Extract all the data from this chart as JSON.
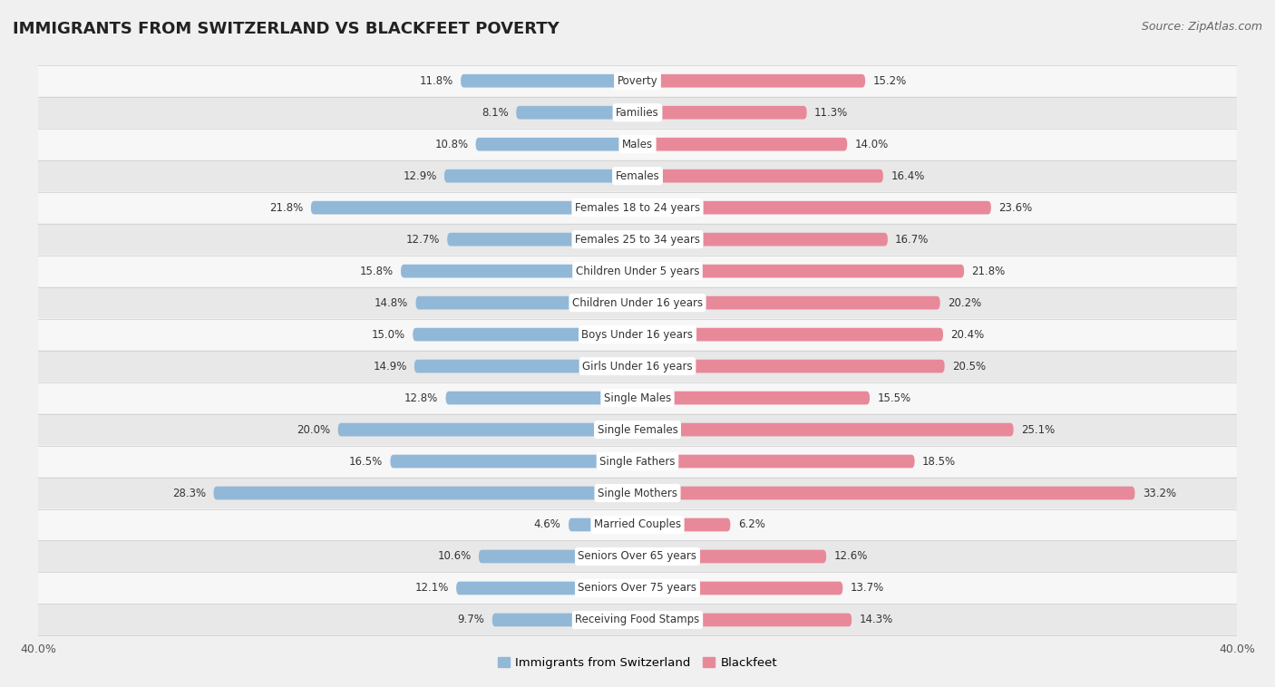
{
  "title": "IMMIGRANTS FROM SWITZERLAND VS BLACKFEET POVERTY",
  "source": "Source: ZipAtlas.com",
  "categories": [
    "Poverty",
    "Families",
    "Males",
    "Females",
    "Females 18 to 24 years",
    "Females 25 to 34 years",
    "Children Under 5 years",
    "Children Under 16 years",
    "Boys Under 16 years",
    "Girls Under 16 years",
    "Single Males",
    "Single Females",
    "Single Fathers",
    "Single Mothers",
    "Married Couples",
    "Seniors Over 65 years",
    "Seniors Over 75 years",
    "Receiving Food Stamps"
  ],
  "left_values": [
    11.8,
    8.1,
    10.8,
    12.9,
    21.8,
    12.7,
    15.8,
    14.8,
    15.0,
    14.9,
    12.8,
    20.0,
    16.5,
    28.3,
    4.6,
    10.6,
    12.1,
    9.7
  ],
  "right_values": [
    15.2,
    11.3,
    14.0,
    16.4,
    23.6,
    16.7,
    21.8,
    20.2,
    20.4,
    20.5,
    15.5,
    25.1,
    18.5,
    33.2,
    6.2,
    12.6,
    13.7,
    14.3
  ],
  "left_color": "#92b8d8",
  "right_color": "#e8899a",
  "background_color": "#f0f0f0",
  "row_color_even": "#f7f7f7",
  "row_color_odd": "#e8e8e8",
  "xlim": 40.0,
  "legend_left": "Immigrants from Switzerland",
  "legend_right": "Blackfeet",
  "title_fontsize": 13,
  "source_fontsize": 9,
  "bar_label_fontsize": 8.5,
  "cat_label_fontsize": 8.5
}
